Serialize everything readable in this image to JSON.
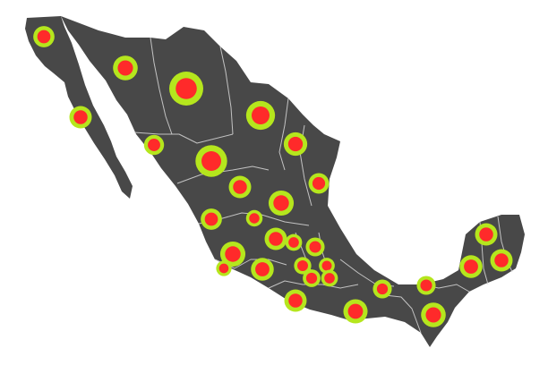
{
  "map": {
    "colors": {
      "background": "#ffffff",
      "land": "#484848",
      "borders": "#d8d8d8",
      "marker_fill": "#ff2a2a",
      "marker_ring": "#b5e61d"
    },
    "markers": [
      {
        "id": "baja-california",
        "level": 0.45
      },
      {
        "id": "sonora",
        "level": 0.6
      },
      {
        "id": "chihuahua",
        "level": 1.0
      },
      {
        "id": "baja-california-sur",
        "level": 0.5
      },
      {
        "id": "coahuila",
        "level": 0.78
      },
      {
        "id": "sinaloa",
        "level": 0.4
      },
      {
        "id": "nuevo-leon",
        "level": 0.55
      },
      {
        "id": "durango",
        "level": 0.9
      },
      {
        "id": "tamaulipas",
        "level": 0.42
      },
      {
        "id": "zacatecas",
        "level": 0.5
      },
      {
        "id": "san-luis-potosi",
        "level": 0.62
      },
      {
        "id": "nayarit",
        "level": 0.45
      },
      {
        "id": "aguascalientes",
        "level": 0.25
      },
      {
        "id": "jalisco",
        "level": 0.62
      },
      {
        "id": "guanajuato",
        "level": 0.5
      },
      {
        "id": "queretaro",
        "level": 0.26
      },
      {
        "id": "hidalgo",
        "level": 0.35
      },
      {
        "id": "colima",
        "level": 0.2
      },
      {
        "id": "michoacan",
        "level": 0.52
      },
      {
        "id": "estado-de-mexico",
        "level": 0.28
      },
      {
        "id": "tlaxcala",
        "level": 0.22
      },
      {
        "id": "cdmx",
        "level": 0.3
      },
      {
        "id": "morelos",
        "level": 0.26
      },
      {
        "id": "puebla",
        "level": 0.35
      },
      {
        "id": "guerrero",
        "level": 0.5
      },
      {
        "id": "veracruz",
        "level": 0.35
      },
      {
        "id": "tabasco",
        "level": 0.3
      },
      {
        "id": "oaxaca",
        "level": 0.58
      },
      {
        "id": "chiapas",
        "level": 0.6
      },
      {
        "id": "campeche",
        "level": 0.52
      },
      {
        "id": "yucatan",
        "level": 0.5
      },
      {
        "id": "quintana-roo",
        "level": 0.5
      }
    ]
  }
}
